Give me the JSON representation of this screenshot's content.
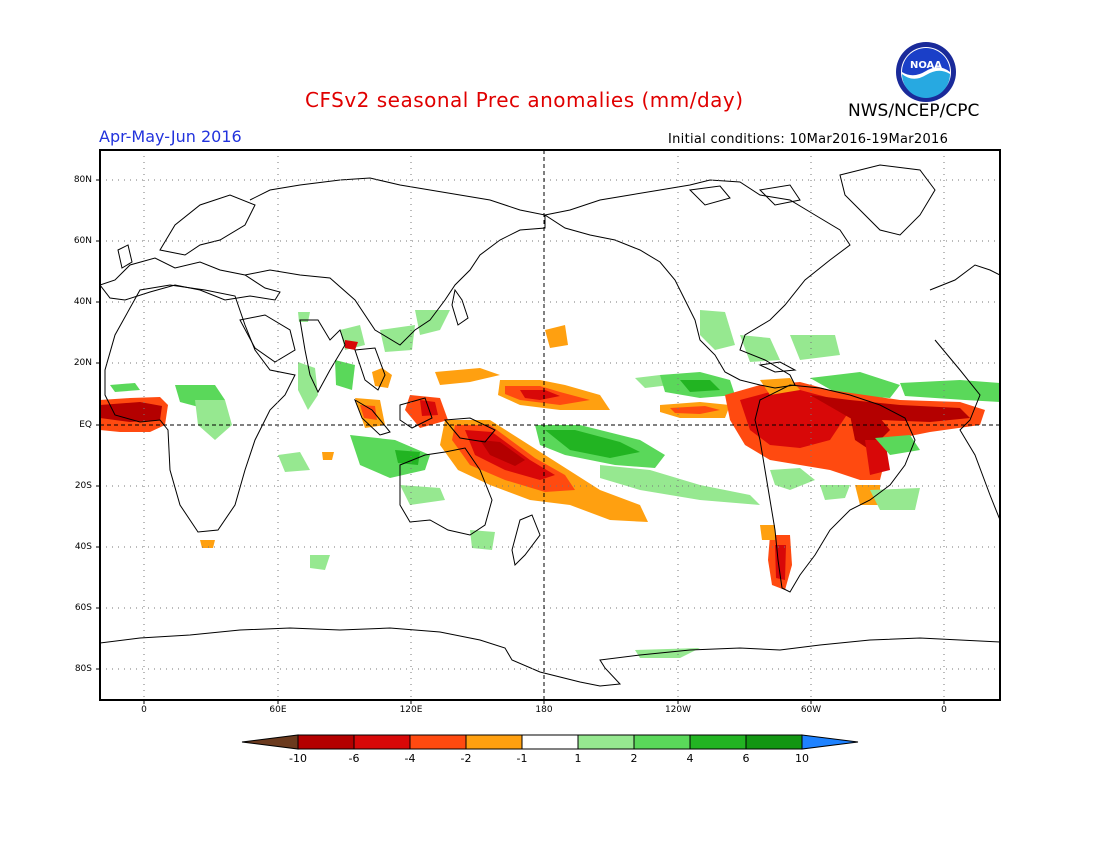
{
  "header": {
    "title": "CFSv2 seasonal Prec anomalies (mm/day)",
    "org": "NWS/NCEP/CPC",
    "period": "Apr-May-Jun 2016",
    "initial_conditions": "Initial conditions: 10Mar2016-19Mar2016",
    "logo_text": "NOAA"
  },
  "lat_labels": [
    "80N",
    "60N",
    "40N",
    "20N",
    "EQ",
    "20S",
    "40S",
    "60S",
    "80S"
  ],
  "lon_labels": [
    "0",
    "60E",
    "120E",
    "180",
    "120W",
    "60W",
    "0"
  ],
  "colorbar": {
    "labels": [
      "-10",
      "-6",
      "-4",
      "-2",
      "-1",
      "1",
      "2",
      "4",
      "6",
      "10"
    ],
    "colors": [
      "#6b3a1e",
      "#b40000",
      "#d80808",
      "#ff4a10",
      "#ffa010",
      "#ffffff",
      "#96e890",
      "#5ad85a",
      "#22b422",
      "#129612",
      "#1e82ff"
    ]
  },
  "colors": {
    "title": "#e00000",
    "period": "#2233dd",
    "frame": "#000000"
  }
}
